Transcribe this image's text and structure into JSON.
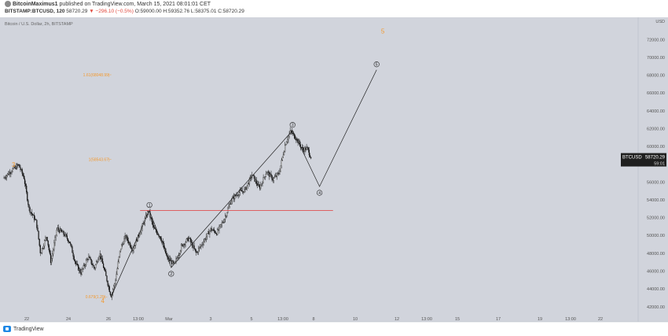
{
  "header": {
    "author": "BitcoinMaximus1",
    "published": "published on TradingView.com, March 15, 2021 08:01:01 CET",
    "symbol": "BITSTAMP:BTCUSD, 120",
    "last": "58720.29",
    "change": "▼ −296.10 (−0.5%)",
    "o": "O:59000.00",
    "h": "H:59352.76",
    "l": "L:58375.01",
    "c": "C:58720.29"
  },
  "footer": {
    "brand": "TradingView"
  },
  "chart_data": {
    "type": "candlestick",
    "title": "Bitcoin / U.S. Dollar, 2h, BITSTAMP",
    "price_axis": {
      "ticks": [
        42000,
        44000,
        46000,
        48000,
        50000,
        52000,
        54000,
        56000,
        58000,
        60000,
        62000,
        64000,
        66000,
        68000,
        70000,
        72000
      ],
      "tick_labels": [
        "42000.00",
        "44000.00",
        "46000.00",
        "48000.00",
        "50000.00",
        "52000.00",
        "54000.00",
        "56000.00",
        "58000.00",
        "60000.00",
        "62000.00",
        "64000.00",
        "66000.00",
        "68000.00",
        "70000.00",
        "72000.00"
      ],
      "range": [
        40300,
        74500
      ],
      "top_label": "USD",
      "last_price_tag": {
        "symbol": "BTCUSD",
        "price": "58720.29",
        "countdown": "59:01"
      }
    },
    "time_axis": {
      "ticks": [
        "22",
        "24",
        "26",
        "13:00",
        "Mar",
        "3",
        "5",
        "13:00",
        "8",
        "10",
        "12",
        "13:00",
        "15",
        "17",
        "19",
        "13:00",
        "22"
      ],
      "range_days": [
        0,
        29.7
      ]
    },
    "price_path": [
      {
        "t": 0,
        "p": 56400
      },
      {
        "t": 0.8,
        "p": 57300
      },
      {
        "t": 1.5,
        "p": 57900
      },
      {
        "t": 2,
        "p": 56500
      },
      {
        "t": 2.5,
        "p": 53000
      },
      {
        "t": 3.2,
        "p": 51500
      },
      {
        "t": 3.6,
        "p": 48000
      },
      {
        "t": 4.2,
        "p": 50000
      },
      {
        "t": 4.6,
        "p": 47000
      },
      {
        "t": 5.2,
        "p": 50800
      },
      {
        "t": 5.9,
        "p": 50100
      },
      {
        "t": 6.4,
        "p": 49300
      },
      {
        "t": 7,
        "p": 46800
      },
      {
        "t": 7.5,
        "p": 45800
      },
      {
        "t": 8.2,
        "p": 47600
      },
      {
        "t": 8.8,
        "p": 46300
      },
      {
        "t": 9.3,
        "p": 48000
      },
      {
        "t": 9.8,
        "p": 45900
      },
      {
        "t": 10.4,
        "p": 43200
      },
      {
        "t": 10.8,
        "p": 44800
      },
      {
        "t": 11.3,
        "p": 48500
      },
      {
        "t": 11.8,
        "p": 49900
      },
      {
        "t": 12.5,
        "p": 48400
      },
      {
        "t": 13.3,
        "p": 50700
      },
      {
        "t": 14,
        "p": 52800
      },
      {
        "t": 14.5,
        "p": 50800
      },
      {
        "t": 15.2,
        "p": 49800
      },
      {
        "t": 15.8,
        "p": 47500
      },
      {
        "t": 16.5,
        "p": 46700
      },
      {
        "t": 17.2,
        "p": 48800
      },
      {
        "t": 17.9,
        "p": 49700
      },
      {
        "t": 18.6,
        "p": 48000
      },
      {
        "t": 19.3,
        "p": 49300
      },
      {
        "t": 20,
        "p": 50700
      },
      {
        "t": 20.6,
        "p": 50300
      },
      {
        "t": 21.3,
        "p": 51800
      },
      {
        "t": 22,
        "p": 54000
      },
      {
        "t": 22.7,
        "p": 54800
      },
      {
        "t": 23.3,
        "p": 55100
      },
      {
        "t": 24,
        "p": 56800
      },
      {
        "t": 24.7,
        "p": 55300
      },
      {
        "t": 25.4,
        "p": 57200
      },
      {
        "t": 26,
        "p": 56300
      },
      {
        "t": 26.6,
        "p": 57000
      },
      {
        "t": 27.2,
        "p": 60300
      },
      {
        "t": 27.7,
        "p": 61700
      },
      {
        "t": 28.3,
        "p": 60800
      },
      {
        "t": 28.9,
        "p": 59600
      },
      {
        "t": 29.3,
        "p": 59800
      },
      {
        "t": 29.7,
        "p": 58720
      }
    ],
    "wave_path": [
      {
        "t": 10.4,
        "p": 43100
      },
      {
        "t": 14.1,
        "p": 52800
      },
      {
        "t": 16.2,
        "p": 46400
      },
      {
        "t": 27.9,
        "p": 61800
      },
      {
        "t": 30.5,
        "p": 55500
      },
      {
        "t": 36.0,
        "p": 68600
      }
    ],
    "wave_labels": [
      {
        "label": "1",
        "t": 14.1,
        "p": 52800
      },
      {
        "label": "2",
        "t": 16.2,
        "p": 46400
      },
      {
        "label": "3",
        "t": 27.9,
        "p": 61800
      },
      {
        "label": "4",
        "t": 30.5,
        "p": 55500
      },
      {
        "label": "5",
        "t": 36.0,
        "p": 68600
      }
    ],
    "big_wave_labels": [
      {
        "label": "3",
        "t": 1.0,
        "p": 57700
      },
      {
        "label": "4",
        "t": 9.6,
        "p": 42400
      },
      {
        "label": "5",
        "t": 36.6,
        "p": 72700
      }
    ],
    "support_line": {
      "price": 52800,
      "t_start": 13.2,
      "t_end": 31.8,
      "color": "#e05050"
    },
    "fib_levels": [
      {
        "label": "1.61(68048.99)",
        "price": 68049,
        "t_start": 8.0,
        "t_end": 10.1
      },
      {
        "label": "1(58543.67)",
        "price": 58544,
        "t_start": 8.0,
        "t_end": 10.1
      },
      {
        "label": "0.679(1.29)",
        "price": 43100,
        "t_start": 7.6,
        "t_end": 9.6
      }
    ],
    "colors": {
      "background": "#d1d4dc",
      "candle": "#111111",
      "wave_line": "#222222",
      "fib": "#f39a31",
      "axis_text": "#555555"
    }
  }
}
